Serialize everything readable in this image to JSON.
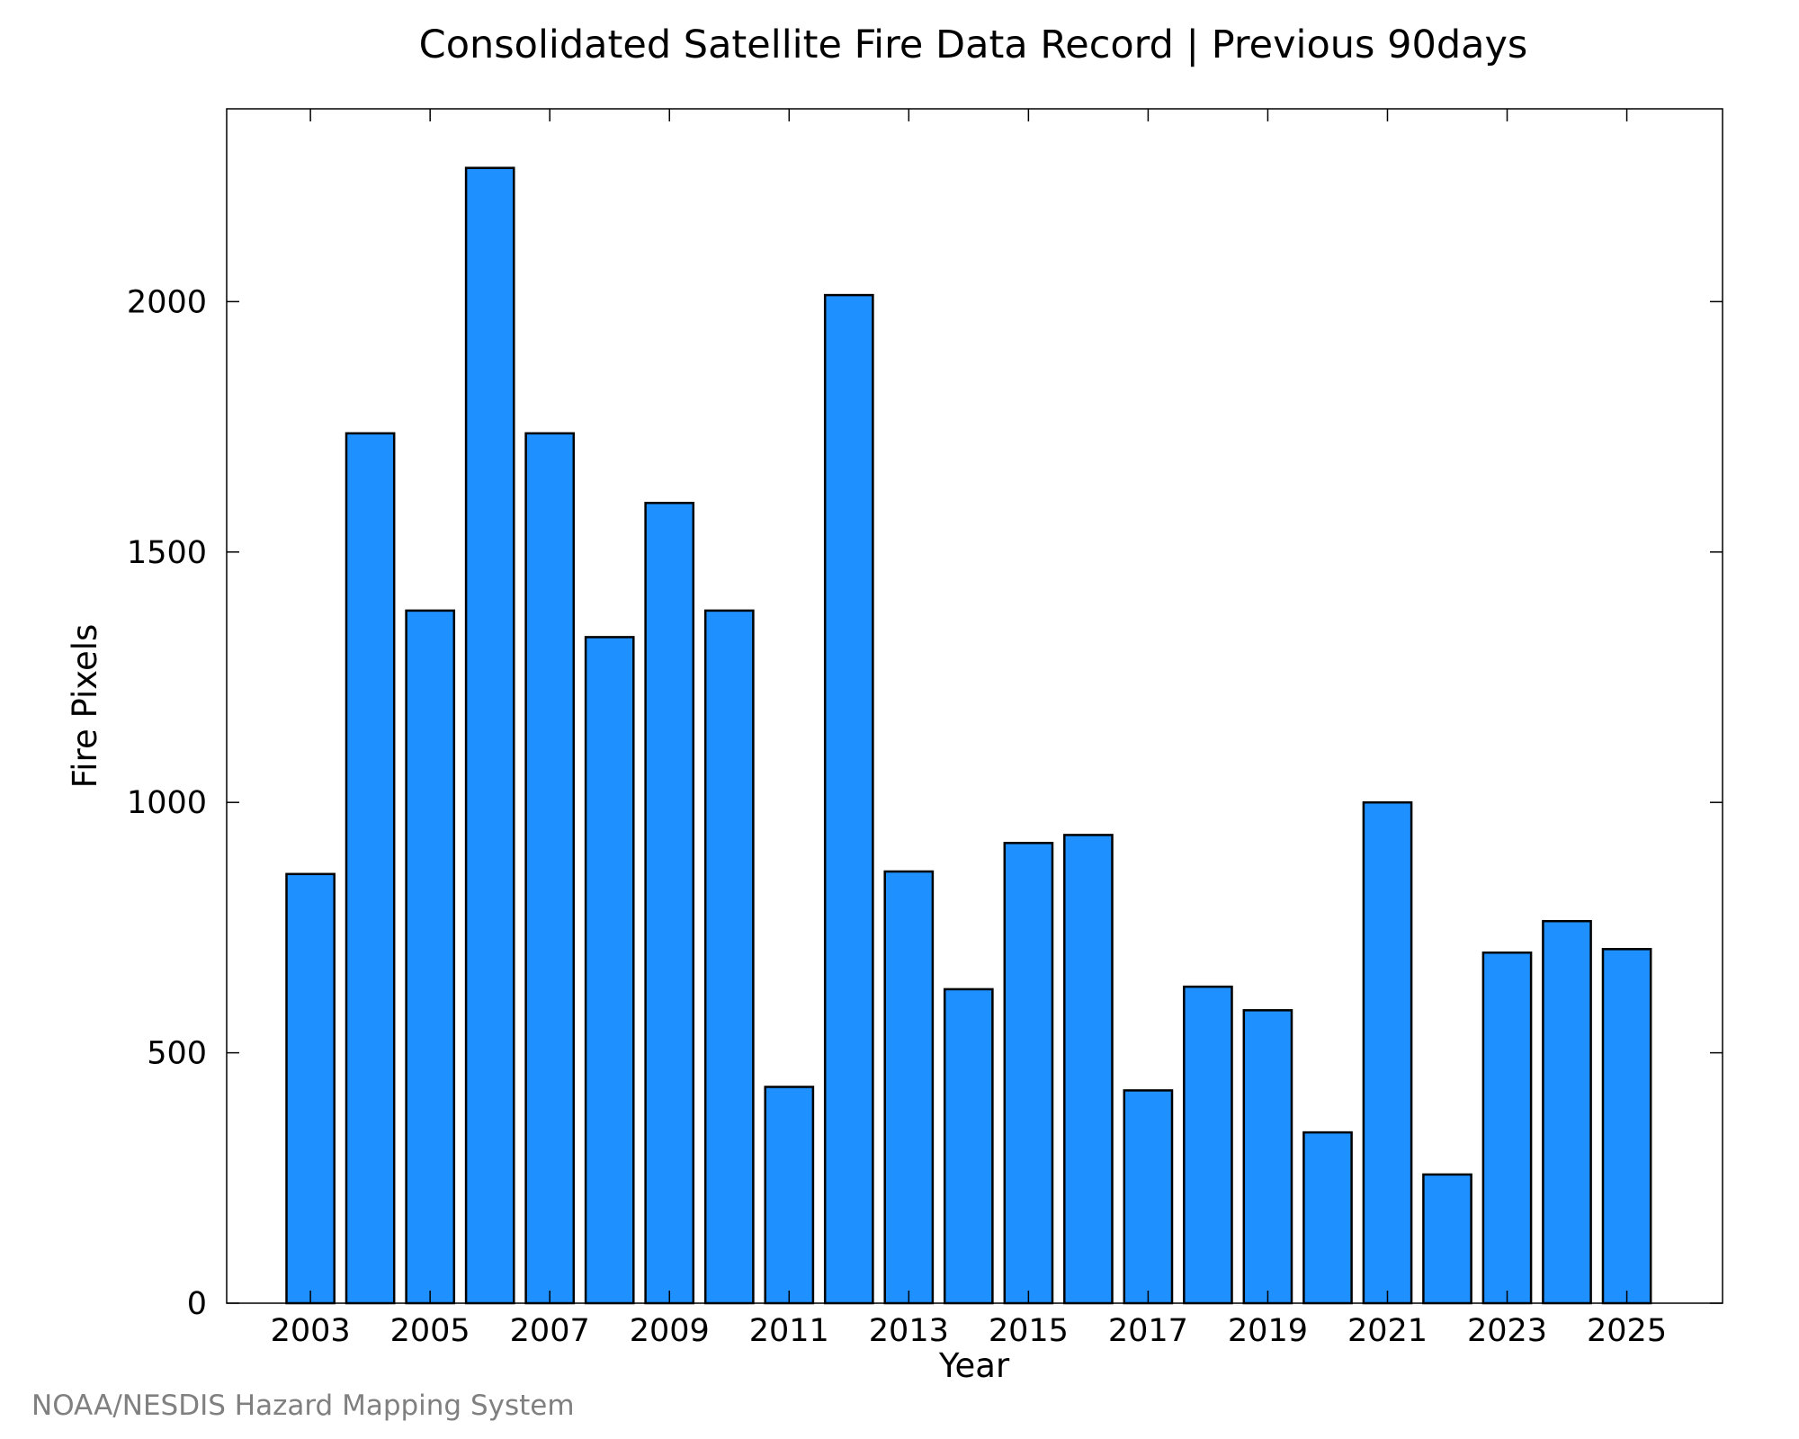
{
  "chart_data": {
    "type": "bar",
    "title": "Consolidated Satellite Fire Data Record | Previous 90days",
    "xlabel": "Year",
    "ylabel": "Fire Pixels",
    "categories": [
      "2003",
      "2004",
      "2005",
      "2006",
      "2007",
      "2008",
      "2009",
      "2010",
      "2011",
      "2012",
      "2013",
      "2014",
      "2015",
      "2016",
      "2017",
      "2018",
      "2019",
      "2020",
      "2021",
      "2022",
      "2023",
      "2024",
      "2025"
    ],
    "values": [
      857,
      1737,
      1383,
      2267,
      1737,
      1330,
      1598,
      1383,
      432,
      2013,
      862,
      627,
      919,
      935,
      425,
      632,
      585,
      341,
      1000,
      257,
      700,
      763,
      707
    ],
    "x_tick_labels": [
      "2003",
      "2005",
      "2007",
      "2009",
      "2011",
      "2013",
      "2015",
      "2017",
      "2019",
      "2021",
      "2023",
      "2025"
    ],
    "y_ticks": [
      0,
      500,
      1000,
      1500,
      2000
    ],
    "ylim": [
      0,
      2385
    ],
    "xlim": [
      2001.6,
      2026.6
    ],
    "bar_color": "#1e90ff",
    "grid": false,
    "legend": "none"
  },
  "footer": {
    "credit": "NOAA/NESDIS Hazard Mapping System"
  }
}
